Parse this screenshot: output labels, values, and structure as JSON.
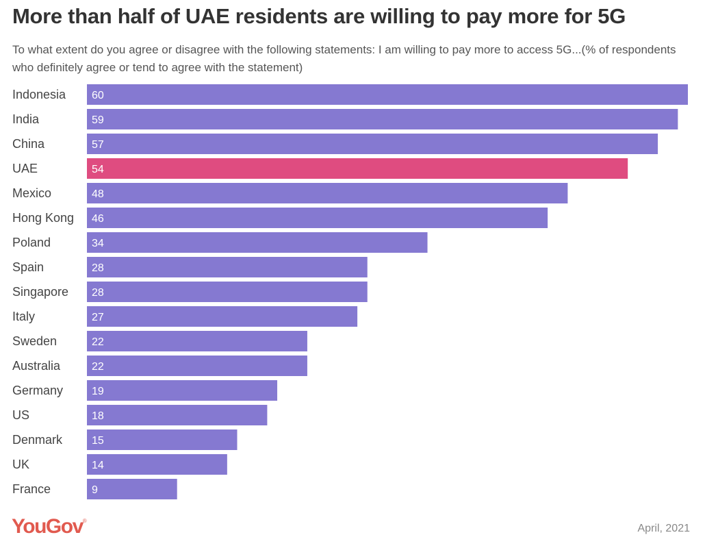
{
  "header": {
    "title": "More than half of UAE residents are willing to pay more for 5G",
    "subtitle": "To what extent do you agree or disagree with the following statements: I am willing to pay more to access 5G...(% of respondents who definitely agree or tend to agree with the statement)"
  },
  "footer": {
    "logo": "YouGov",
    "date": "April, 2021"
  },
  "colors": {
    "default_bar": "#8579d1",
    "highlight_bar": "#df4c80"
  },
  "chart_data": {
    "type": "bar",
    "orientation": "horizontal",
    "title": "More than half of UAE residents are willing to pay more for 5G",
    "subtitle": "To what extent do you agree or disagree with the following statements: I am willing to pay more to access 5G...(% of respondents who definitely agree or tend to agree with the statement)",
    "xlabel": "",
    "ylabel": "",
    "xlim": [
      0,
      60
    ],
    "grid": false,
    "legend": "none",
    "highlight": "UAE",
    "categories": [
      "Indonesia",
      "India",
      "China",
      "UAE",
      "Mexico",
      "Hong Kong",
      "Poland",
      "Spain",
      "Singapore",
      "Italy",
      "Sweden",
      "Australia",
      "Germany",
      "US",
      "Denmark",
      "UK",
      "France"
    ],
    "values": [
      60,
      59,
      57,
      54,
      48,
      46,
      34,
      28,
      28,
      27,
      22,
      22,
      19,
      18,
      15,
      14,
      9
    ]
  }
}
